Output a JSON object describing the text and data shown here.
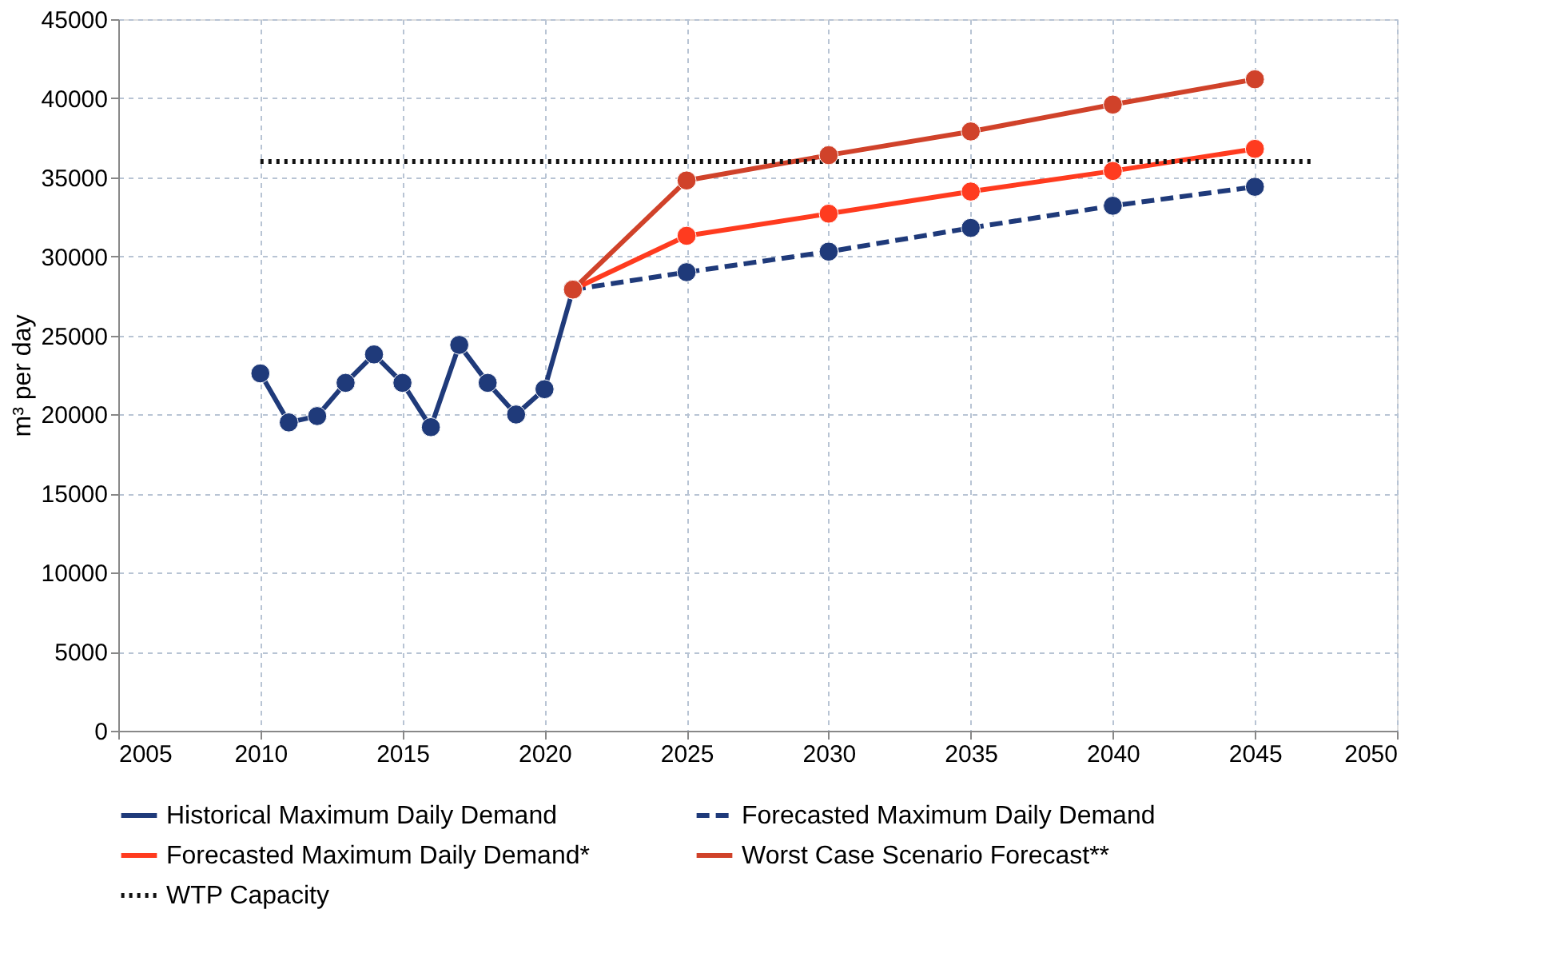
{
  "chart_data": {
    "type": "line",
    "ylabel": "m³ per day",
    "xlim": [
      2005,
      2050
    ],
    "xticks": [
      2005,
      2010,
      2015,
      2020,
      2025,
      2030,
      2035,
      2040,
      2045,
      2050
    ],
    "ylim": [
      0,
      45000
    ],
    "yticks": [
      0,
      5000,
      10000,
      15000,
      20000,
      25000,
      30000,
      35000,
      40000,
      45000
    ],
    "grid": true,
    "legend": "bottom",
    "series": [
      {
        "name": "Historical Maximum Daily Demand",
        "color": "#1f3a7a",
        "marker": "circle",
        "line_style": "solid",
        "x": [
          2010,
          2011,
          2012,
          2013,
          2014,
          2015,
          2016,
          2017,
          2018,
          2019,
          2020,
          2021
        ],
        "values": [
          22600,
          19500,
          19900,
          22000,
          23800,
          22000,
          19200,
          24400,
          22000,
          20000,
          21600,
          27900
        ]
      },
      {
        "name": "Forecasted Maximum Daily Demand",
        "color": "#1f3a7a",
        "marker": "circle",
        "line_style": "dashed",
        "x": [
          2021,
          2025,
          2030,
          2035,
          2040,
          2045
        ],
        "values": [
          27900,
          29000,
          30300,
          31800,
          33200,
          34400
        ]
      },
      {
        "name": "Forecasted Maximum Daily Demand*",
        "color": "#ff3b1f",
        "marker": "circle",
        "line_style": "solid",
        "x": [
          2021,
          2025,
          2030,
          2035,
          2040,
          2045
        ],
        "values": [
          27900,
          31300,
          32700,
          34100,
          35400,
          36800
        ]
      },
      {
        "name": "Worst Case Scenario Forecast**",
        "color": "#d0422a",
        "marker": "circle",
        "line_style": "solid",
        "x": [
          2021,
          2025,
          2030,
          2035,
          2040,
          2045
        ],
        "values": [
          27900,
          34800,
          36400,
          37900,
          39600,
          41200
        ]
      },
      {
        "name": "WTP Capacity",
        "color": "#111111",
        "marker": "none",
        "line_style": "dotted",
        "x": [
          2010,
          2047
        ],
        "values": [
          36000,
          36000
        ]
      }
    ]
  }
}
